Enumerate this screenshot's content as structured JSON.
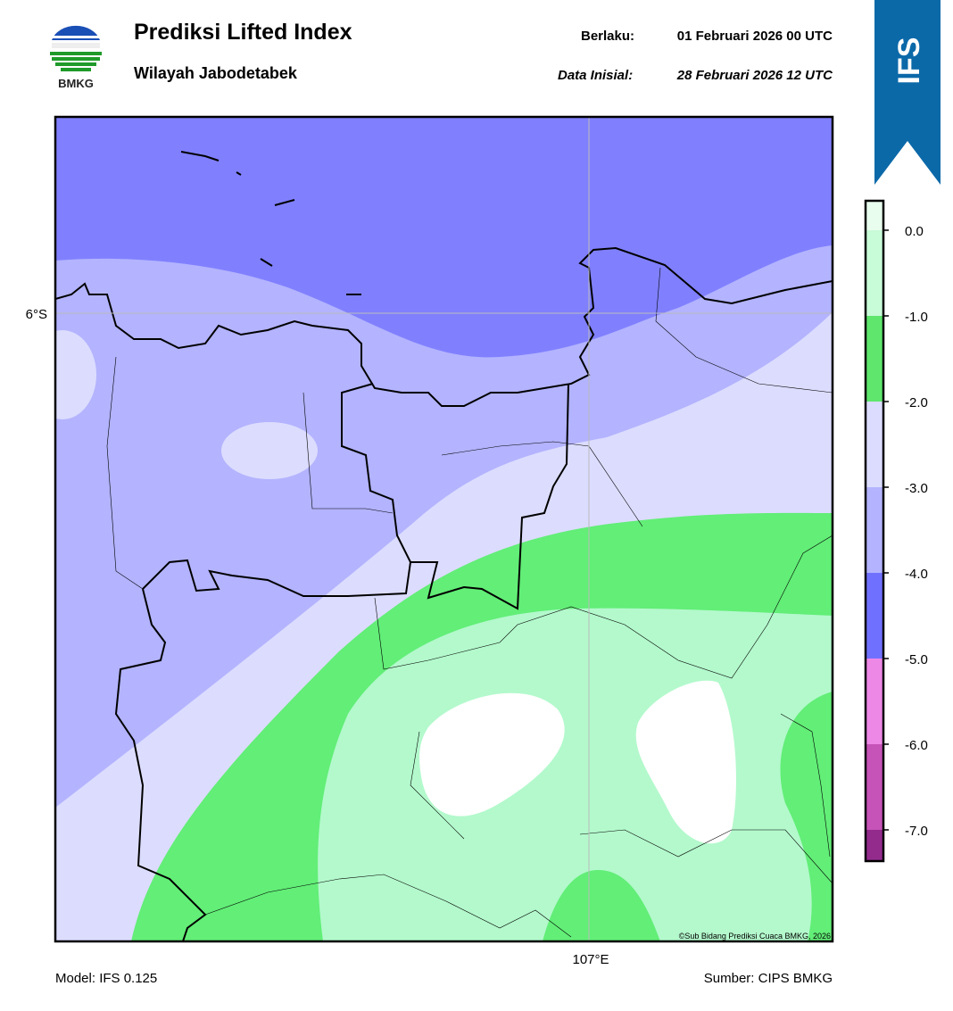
{
  "header": {
    "logo": "BMKG",
    "title": "Prediksi Lifted Index",
    "subtitle": "Wilayah Jabodetabek",
    "valid_label": "Berlaku:",
    "valid_time": "01 Februari 2026 00 UTC",
    "init_label": "Data Inisial:",
    "init_time": "28 Februari 2026 12 UTC",
    "banner": "IFS"
  },
  "map": {
    "lat_label": "6°S",
    "lon_label": "107°E",
    "credit": "©Sub Bidang Prediksi Cuaca BMKG, 2026"
  },
  "colorbar": {
    "labels": [
      "0.0",
      "-1.0",
      "-2.0",
      "-3.0",
      "-4.0",
      "-5.0",
      "-6.0",
      "-7.0"
    ]
  },
  "footer": {
    "model": "Model: IFS 0.125",
    "source": "Sumber: CIPS BMKG"
  }
}
